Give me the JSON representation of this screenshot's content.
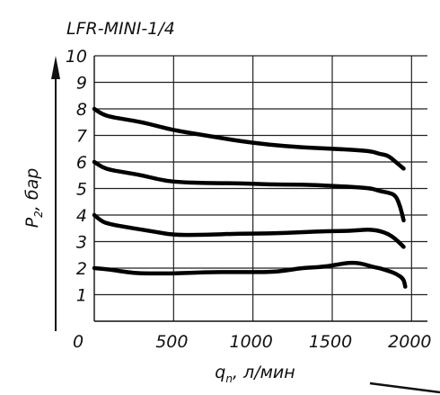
{
  "chart_data": {
    "type": "line",
    "title": "LFR-MINI-1/4",
    "xlabel": "q",
    "xlabel_sub": "n",
    "xlabel_unit": ", л/мин",
    "ylabel": "P",
    "ylabel_sub": "2",
    "ylabel_unit": ", бар",
    "origin_label": "0",
    "xlim": [
      0,
      2100
    ],
    "ylim": [
      0,
      10
    ],
    "x_ticks": [
      500,
      1000,
      1500,
      2000
    ],
    "y_ticks": [
      1,
      2,
      3,
      4,
      5,
      6,
      7,
      8,
      9,
      10
    ],
    "grid": true,
    "series": [
      {
        "x": [
          0,
          50,
          100,
          200,
          300,
          400,
          500,
          700,
          900,
          1100,
          1300,
          1500,
          1650,
          1750,
          1800,
          1850,
          1900,
          1950
        ],
        "y": [
          8.0,
          7.8,
          7.7,
          7.6,
          7.5,
          7.35,
          7.2,
          7.0,
          6.8,
          6.65,
          6.55,
          6.5,
          6.45,
          6.4,
          6.3,
          6.25,
          6.0,
          5.75
        ]
      },
      {
        "x": [
          0,
          50,
          100,
          200,
          300,
          400,
          500,
          700,
          900,
          1100,
          1300,
          1500,
          1650,
          1750,
          1800,
          1850,
          1900,
          1930,
          1950
        ],
        "y": [
          6.0,
          5.8,
          5.7,
          5.6,
          5.5,
          5.35,
          5.25,
          5.2,
          5.2,
          5.15,
          5.15,
          5.1,
          5.05,
          5.0,
          4.9,
          4.85,
          4.75,
          4.3,
          3.8
        ]
      },
      {
        "x": [
          0,
          50,
          100,
          200,
          300,
          400,
          500,
          700,
          900,
          1100,
          1300,
          1500,
          1600,
          1700,
          1750,
          1800,
          1850,
          1900,
          1950
        ],
        "y": [
          4.0,
          3.75,
          3.65,
          3.55,
          3.45,
          3.35,
          3.25,
          3.25,
          3.3,
          3.3,
          3.35,
          3.4,
          3.4,
          3.45,
          3.45,
          3.4,
          3.3,
          3.1,
          2.8
        ]
      },
      {
        "x": [
          0,
          100,
          200,
          300,
          400,
          500,
          700,
          900,
          1100,
          1200,
          1300,
          1450,
          1550,
          1600,
          1650,
          1700,
          1750,
          1800,
          1850,
          1900,
          1950,
          1960
        ],
        "y": [
          2.0,
          1.95,
          1.85,
          1.8,
          1.8,
          1.8,
          1.85,
          1.85,
          1.85,
          1.9,
          2.0,
          2.05,
          2.15,
          2.2,
          2.2,
          2.15,
          2.05,
          2.0,
          1.9,
          1.8,
          1.6,
          1.3
        ]
      }
    ]
  }
}
